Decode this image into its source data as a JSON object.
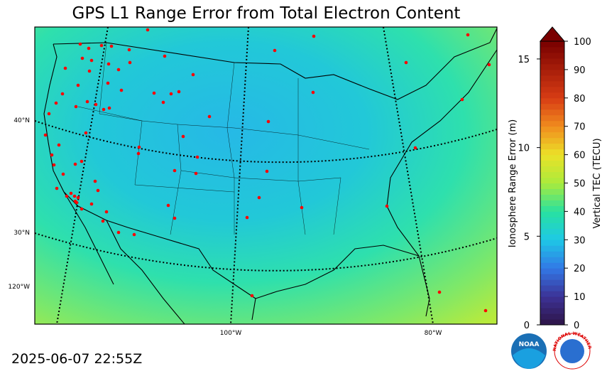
{
  "header": {
    "title": "GPS L1 Range Error from Total Electron Content",
    "timestamp": "2025-06-07 22:55Z"
  },
  "map": {
    "lat_labels": [
      "40°N",
      "30°N"
    ],
    "lon_labels": [
      "120°W",
      "100°W",
      "80°W"
    ]
  },
  "colorbar": {
    "tec_label": "Vertical TEC (TECU)",
    "tec_lim": [
      0,
      100
    ],
    "tec_ticks": [
      0,
      10,
      20,
      30,
      40,
      50,
      60,
      70,
      80,
      90,
      100
    ],
    "range_label": "Ionosphere Range Error (m)",
    "range_lim": [
      0,
      16
    ],
    "range_ticks": [
      0,
      5,
      10,
      15
    ]
  },
  "logos": {
    "noaa": "NOAA",
    "nws": "NATIONAL WEATHER SERVICE"
  }
}
